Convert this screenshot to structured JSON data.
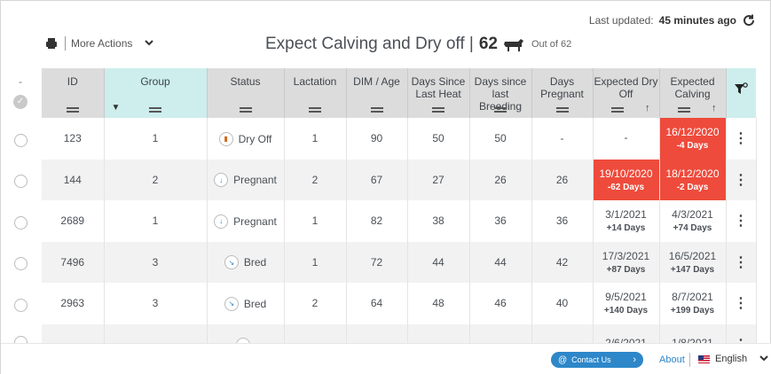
{
  "header": {
    "last_updated_label": "Last updated:",
    "last_updated_value": "45 minutes ago",
    "more_actions": "More Actions",
    "title": "Expect Calving and Dry off |",
    "count": "62",
    "out_of": "Out of 62"
  },
  "left": {
    "dash": "-"
  },
  "columns": [
    {
      "label": "ID"
    },
    {
      "label": "Group"
    },
    {
      "label": "Status"
    },
    {
      "label": "Lactation"
    },
    {
      "label": "DIM / Age"
    },
    {
      "label": "Days Since Last Heat"
    },
    {
      "label": "Days since last Breeding"
    },
    {
      "label": "Days Pregnant"
    },
    {
      "label": "Expected Dry Off"
    },
    {
      "label": "Expected Calving"
    }
  ],
  "rows": [
    {
      "id": "123",
      "group": "1",
      "status": "Dry Off",
      "status_icon": "dry-off-icon",
      "lactation": "1",
      "dim": "90",
      "since_heat": "50",
      "since_breeding": "50",
      "pregnant": "-",
      "dry_off": "-",
      "dry_off_sub": "",
      "calving": "16/12/2020",
      "calving_sub": "-4 Days",
      "dry_alert": false,
      "calv_alert": true
    },
    {
      "id": "144",
      "group": "2",
      "status": "Pregnant",
      "status_icon": "pregnant-icon",
      "lactation": "2",
      "dim": "67",
      "since_heat": "27",
      "since_breeding": "26",
      "pregnant": "26",
      "dry_off": "19/10/2020",
      "dry_off_sub": "-62 Days",
      "calving": "18/12/2020",
      "calving_sub": "-2 Days",
      "dry_alert": true,
      "calv_alert": true
    },
    {
      "id": "2689",
      "group": "1",
      "status": "Pregnant",
      "status_icon": "pregnant-icon",
      "lactation": "1",
      "dim": "82",
      "since_heat": "38",
      "since_breeding": "36",
      "pregnant": "36",
      "dry_off": "3/1/2021",
      "dry_off_sub": "+14 Days",
      "calving": "4/3/2021",
      "calving_sub": "+74 Days",
      "dry_alert": false,
      "calv_alert": false
    },
    {
      "id": "7496",
      "group": "3",
      "status": "Bred",
      "status_icon": "bred-icon",
      "lactation": "1",
      "dim": "72",
      "since_heat": "44",
      "since_breeding": "44",
      "pregnant": "42",
      "dry_off": "17/3/2021",
      "dry_off_sub": "+87 Days",
      "calving": "16/5/2021",
      "calving_sub": "+147 Days",
      "dry_alert": false,
      "calv_alert": false
    },
    {
      "id": "2963",
      "group": "3",
      "status": "Bred",
      "status_icon": "bred-icon",
      "lactation": "2",
      "dim": "64",
      "since_heat": "48",
      "since_breeding": "46",
      "pregnant": "40",
      "dry_off": "9/5/2021",
      "dry_off_sub": "+140 Days",
      "calving": "8/7/2021",
      "calving_sub": "+199 Days",
      "dry_alert": false,
      "calv_alert": false
    },
    {
      "id": "",
      "group": "",
      "status": "",
      "status_icon": "bred-icon",
      "lactation": "",
      "dim": "",
      "since_heat": "",
      "since_breeding": "",
      "pregnant": "",
      "dry_off": "2/6/2021",
      "dry_off_sub": "",
      "calving": "1/8/2021",
      "calving_sub": "",
      "dry_alert": false,
      "calv_alert": false
    }
  ],
  "footer": {
    "contact": "Contact Us",
    "about": "About",
    "language": "English"
  },
  "colors": {
    "alert": "#ee4b3c",
    "filter_header": "#cdeeed",
    "header": "#dcdcdc",
    "accent": "#2d87c9"
  }
}
